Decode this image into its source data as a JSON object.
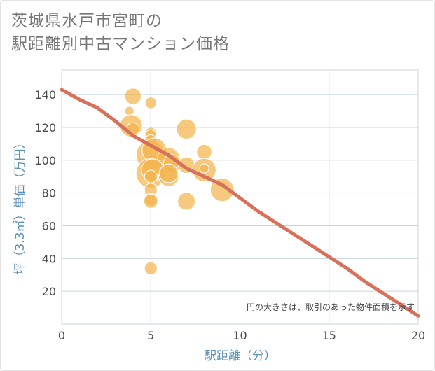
{
  "chart_data": {
    "type": "scatter",
    "title_line1": "茨城県水戸市宮町の",
    "title_line2": "駅距離別中古マンション価格",
    "xlabel": "駅距離（分）",
    "ylabel": "坪（3.3㎡）単価（万円）",
    "xlim": [
      0,
      20
    ],
    "ylim": [
      0,
      155
    ],
    "xticks": [
      0,
      5,
      10,
      15,
      20
    ],
    "yticks": [
      20,
      40,
      60,
      80,
      100,
      120,
      140
    ],
    "grid": true,
    "note": "円の大きさは、取引のあった物件面積を示す",
    "colors": {
      "bubble": "#f2b44c",
      "trend": "#d9705a",
      "grid": "#c8d4e0",
      "axis_label": "#5b8fb9"
    },
    "points": [
      {
        "x": 4,
        "y": 139,
        "size": 0.45
      },
      {
        "x": 5,
        "y": 135,
        "size": 0.25
      },
      {
        "x": 3.8,
        "y": 130,
        "size": 0.15
      },
      {
        "x": 3.9,
        "y": 121,
        "size": 0.7
      },
      {
        "x": 4,
        "y": 119,
        "size": 0.3
      },
      {
        "x": 5,
        "y": 117,
        "size": 0.2
      },
      {
        "x": 5,
        "y": 115,
        "size": 0.25
      },
      {
        "x": 5,
        "y": 112,
        "size": 0.25
      },
      {
        "x": 7,
        "y": 119,
        "size": 0.6
      },
      {
        "x": 5,
        "y": 103,
        "size": 1.0
      },
      {
        "x": 5.2,
        "y": 106,
        "size": 0.8
      },
      {
        "x": 6,
        "y": 101,
        "size": 0.7
      },
      {
        "x": 8,
        "y": 105,
        "size": 0.4
      },
      {
        "x": 6.2,
        "y": 98,
        "size": 0.5
      },
      {
        "x": 7,
        "y": 97,
        "size": 0.45
      },
      {
        "x": 5,
        "y": 92,
        "size": 1.0
      },
      {
        "x": 5.1,
        "y": 94,
        "size": 0.7
      },
      {
        "x": 5,
        "y": 90,
        "size": 0.3
      },
      {
        "x": 6,
        "y": 90,
        "size": 0.6
      },
      {
        "x": 6,
        "y": 92,
        "size": 0.55
      },
      {
        "x": 8,
        "y": 94,
        "size": 0.75
      },
      {
        "x": 8,
        "y": 95,
        "size": 0.15
      },
      {
        "x": 5,
        "y": 82,
        "size": 0.3
      },
      {
        "x": 9,
        "y": 82,
        "size": 0.75
      },
      {
        "x": 5,
        "y": 76,
        "size": 0.3
      },
      {
        "x": 5,
        "y": 75,
        "size": 0.35
      },
      {
        "x": 7,
        "y": 75,
        "size": 0.5
      },
      {
        "x": 5,
        "y": 34,
        "size": 0.3
      }
    ],
    "trend": {
      "x": [
        0,
        1,
        2,
        3,
        4,
        5,
        6,
        7,
        8,
        9,
        10,
        11,
        12,
        13,
        14,
        15,
        16,
        17,
        18,
        19,
        20
      ],
      "y": [
        143,
        137,
        132,
        124,
        115,
        109,
        103,
        95,
        90,
        85,
        77,
        69,
        62,
        55,
        48,
        41,
        34,
        26,
        19,
        12,
        5
      ]
    }
  }
}
